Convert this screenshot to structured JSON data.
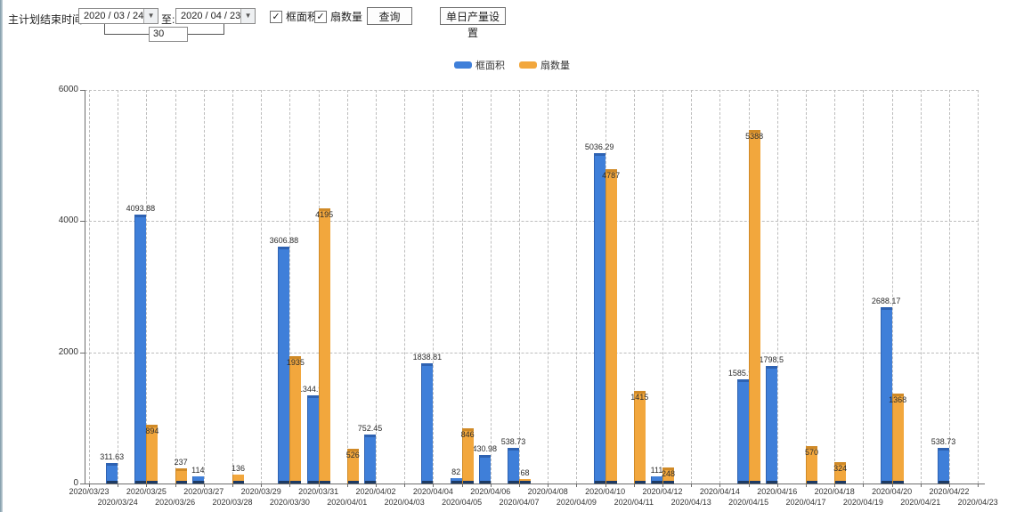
{
  "toolbar": {
    "label": "主计划结束时间:",
    "date_from": "2020 / 03 / 24",
    "to_label": "至:",
    "date_to": "2020 / 04 / 23",
    "offset_days": "30",
    "checkboxes": [
      {
        "label": "框面积",
        "checked": true
      },
      {
        "label": "扇数量",
        "checked": true
      }
    ],
    "query_button": "查询",
    "daily_output_button": "单日产量设置"
  },
  "legend": {
    "items": [
      {
        "label": "框面积",
        "color": "#3F7FD9"
      },
      {
        "label": "扇数量",
        "color": "#F2A73D"
      }
    ]
  },
  "chart_data": {
    "type": "bar",
    "title": "",
    "xlabel": "",
    "ylabel": "",
    "ylim": [
      0,
      6000
    ],
    "yticks": [
      0,
      2000,
      4000,
      6000
    ],
    "grid": "dashed",
    "legend_position": "top",
    "categories": [
      "2020/03/23",
      "2020/03/24",
      "2020/03/25",
      "2020/03/26",
      "2020/03/27",
      "2020/03/28",
      "2020/03/29",
      "2020/03/30",
      "2020/03/31",
      "2020/04/01",
      "2020/04/02",
      "2020/04/03",
      "2020/04/04",
      "2020/04/05",
      "2020/04/06",
      "2020/04/07",
      "2020/04/08",
      "2020/04/09",
      "2020/04/10",
      "2020/04/11",
      "2020/04/12",
      "2020/04/13",
      "2020/04/14",
      "2020/04/15",
      "2020/04/16",
      "2020/04/17",
      "2020/04/18",
      "2020/04/19",
      "2020/04/20",
      "2020/04/21",
      "2020/04/22",
      "2020/04/23"
    ],
    "series": [
      {
        "name": "框面积",
        "slug": "frame-area",
        "color": "#3F7FD9",
        "color_dark": "#2E62B2",
        "values": [
          null,
          311.63,
          4093.88,
          null,
          114,
          null,
          null,
          3606.88,
          1344.95,
          null,
          752.45,
          null,
          1838.81,
          82,
          430.98,
          538.73,
          null,
          null,
          5036.29,
          null,
          111,
          null,
          null,
          1585.96,
          1798.5,
          null,
          null,
          null,
          2688.17,
          null,
          538.73,
          null
        ]
      },
      {
        "name": "扇数量",
        "slug": "sash-count",
        "color": "#F2A73D",
        "color_dark": "#D08A27",
        "values": [
          null,
          null,
          894,
          237,
          null,
          136,
          null,
          1935,
          4195,
          526,
          null,
          null,
          null,
          846,
          null,
          68,
          null,
          null,
          4787,
          1415,
          248,
          null,
          null,
          5388,
          null,
          570,
          324,
          null,
          1368,
          null,
          null,
          null
        ]
      }
    ],
    "bar_base_color": "#1D3A63"
  }
}
